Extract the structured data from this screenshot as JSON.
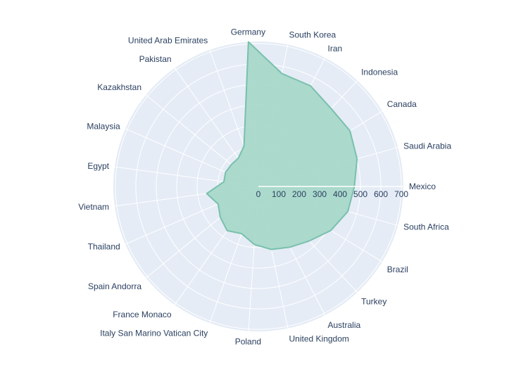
{
  "chart_data": {
    "type": "radar",
    "title": "",
    "categories": [
      "Mexico",
      "Saudi Arabia",
      "Canada",
      "Indonesia",
      "Iran",
      "South Korea",
      "Germany",
      "United Arab Emirates",
      "Pakistan",
      "Kazakhstan",
      "Malaysia",
      "Egypt",
      "Vietnam",
      "Thailand",
      "Spain Andorra",
      "France Monaco",
      "Italy San Marino Vatican City",
      "Poland",
      "United Kingdom",
      "Australia",
      "Turkey",
      "Brazil",
      "South Africa"
    ],
    "series": [
      {
        "name": "",
        "values": [
          470,
          502,
          525,
          522,
          555,
          565,
          710,
          210,
          170,
          170,
          175,
          170,
          255,
          215,
          240,
          265,
          245,
          285,
          315,
          335,
          365,
          415,
          455
        ]
      }
    ],
    "radial_ticks": [
      "0",
      "100",
      "200",
      "300",
      "400",
      "500",
      "600",
      "700"
    ],
    "radial_range": [
      0,
      710
    ],
    "grid": true,
    "colors": {
      "fill": "#a8d8c9",
      "line": "#79c0ad",
      "polar_bg": "#e5ecf6",
      "grid": "#ffffff",
      "text": "#2a3f5f"
    }
  }
}
